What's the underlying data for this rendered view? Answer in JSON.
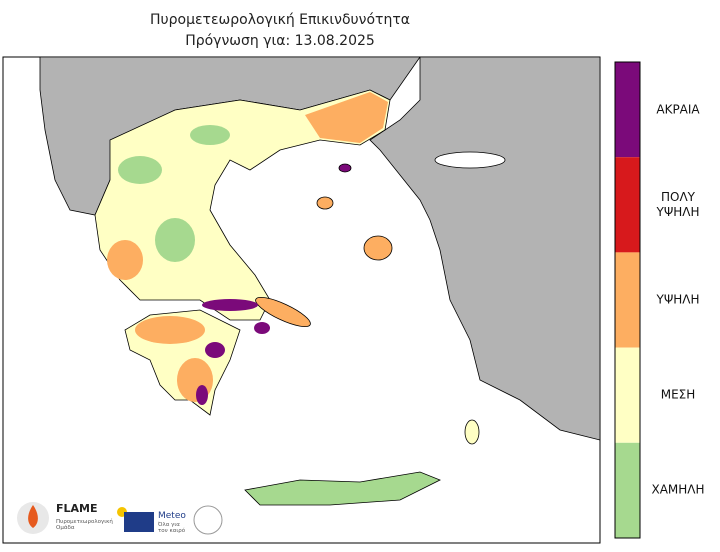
{
  "title": "Πυρομετεωρολογική Επικινδυνότητα",
  "subtitle": "Πρόγνωση για: 13.08.2025",
  "legend": {
    "levels": [
      {
        "label": "ΑΚΡΑΙΑ",
        "color": "#7b0a7a"
      },
      {
        "label": "ΠΟΛΥ\nΥΨΗΛΗ",
        "color": "#d7191c"
      },
      {
        "label": "ΥΨΗΛΗ",
        "color": "#fdae61"
      },
      {
        "label": "ΜΕΣΗ",
        "color": "#ffffc4"
      },
      {
        "label": "ΧΑΜΗΛΗ",
        "color": "#a6d98f"
      }
    ]
  },
  "logos": {
    "flame": {
      "name": "FLAME",
      "caption": "Πυρομετεωρολογική\nΟμάδα"
    },
    "meteo": {
      "name": "Meteo",
      "caption": "Όλα για\nτον καιρό"
    }
  }
}
